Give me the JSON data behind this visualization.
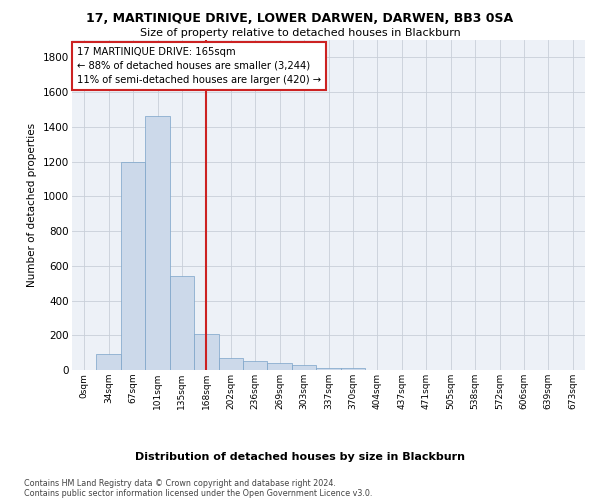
{
  "title": "17, MARTINIQUE DRIVE, LOWER DARWEN, DARWEN, BB3 0SA",
  "subtitle": "Size of property relative to detached houses in Blackburn",
  "xlabel": "Distribution of detached houses by size in Blackburn",
  "ylabel": "Number of detached properties",
  "bar_color": "#ccd9ea",
  "bar_edge_color": "#7aa3c8",
  "grid_color": "#c8cfd8",
  "bg_color": "#edf1f7",
  "vline_color": "#cc2222",
  "vline_x": 5,
  "annotation_line1": "17 MARTINIQUE DRIVE: 165sqm",
  "annotation_line2": "← 88% of detached houses are smaller (3,244)",
  "annotation_line3": "11% of semi-detached houses are larger (420) →",
  "annotation_box_color": "#cc2222",
  "categories": [
    "0sqm",
    "34sqm",
    "67sqm",
    "101sqm",
    "135sqm",
    "168sqm",
    "202sqm",
    "236sqm",
    "269sqm",
    "303sqm",
    "337sqm",
    "370sqm",
    "404sqm",
    "437sqm",
    "471sqm",
    "505sqm",
    "538sqm",
    "572sqm",
    "606sqm",
    "639sqm",
    "673sqm"
  ],
  "bar_heights": [
    0,
    90,
    1200,
    1460,
    540,
    205,
    70,
    50,
    38,
    28,
    12,
    10,
    0,
    0,
    0,
    0,
    0,
    0,
    0,
    0,
    0
  ],
  "ylim": [
    0,
    1900
  ],
  "yticks": [
    0,
    200,
    400,
    600,
    800,
    1000,
    1200,
    1400,
    1600,
    1800
  ],
  "footnote1": "Contains HM Land Registry data © Crown copyright and database right 2024.",
  "footnote2": "Contains public sector information licensed under the Open Government Licence v3.0."
}
